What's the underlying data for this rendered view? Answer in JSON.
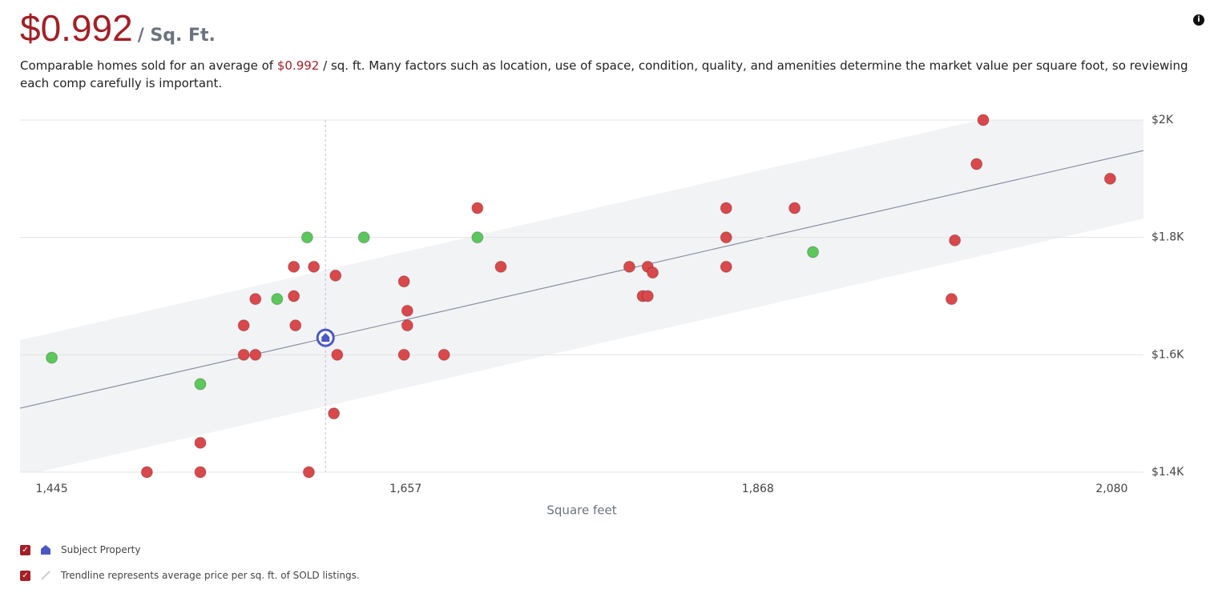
{
  "header": {
    "price": "$0.992",
    "unit": "/ Sq. Ft.",
    "info": "i"
  },
  "description": {
    "before": "Comparable homes sold for an average of",
    "price": "$0.992",
    "after": "/ sq. ft. Many factors such as location, use of space, condition, quality, and amenities determine the market value per square foot, so reviewing each comp carefully is important."
  },
  "chart_data": {
    "type": "scatter",
    "x_label": "Square feet",
    "xlim": [
      1426,
      2099
    ],
    "xticks": [
      {
        "value": 1445,
        "label": "1,445"
      },
      {
        "value": 1657,
        "label": "1,657"
      },
      {
        "value": 1868,
        "label": "1,868"
      },
      {
        "value": 2080,
        "label": "2,080"
      }
    ],
    "ylim": [
      1400,
      2000
    ],
    "yticks": [
      {
        "value": 1400,
        "label": "$1.4K"
      },
      {
        "value": 1600,
        "label": "$1.6K"
      },
      {
        "value": 1800,
        "label": "$1.8K"
      },
      {
        "value": 2000,
        "label": "$2K"
      }
    ],
    "grid": true,
    "trendline": {
      "x": [
        1426,
        2099
      ],
      "y": [
        1509,
        1948
      ],
      "color": "#8a8fa3"
    },
    "band": {
      "x": [
        1426,
        2099
      ],
      "lower": [
        1393,
        1832
      ],
      "upper": [
        1625,
        2064
      ],
      "color": "#f2f3f5"
    },
    "series": [
      {
        "color": "#d9484b",
        "x": [
          1502,
          1534,
          1534,
          1599,
          1560,
          1567,
          1560,
          1567,
          1590,
          1602,
          1590,
          1591,
          1615,
          1616,
          1614,
          1656,
          1658,
          1658,
          1656,
          1680,
          1700,
          1714,
          1791,
          1802,
          1805,
          1799,
          1802,
          1849,
          1849,
          1849,
          1890,
          1984,
          1986,
          1999,
          2003,
          2079
        ],
        "values": [
          1400,
          1400,
          1450,
          1400,
          1600,
          1600,
          1650,
          1695,
          1750,
          1750,
          1700,
          1650,
          1735,
          1600,
          1500,
          1725,
          1675,
          1650,
          1600,
          1600,
          1850,
          1750,
          1750,
          1750,
          1740,
          1700,
          1700,
          1850,
          1800,
          1750,
          1850,
          1695,
          1795,
          1925,
          2000,
          1900
        ]
      },
      {
        "color": "#5cc75c",
        "x": [
          1445,
          1534,
          1580,
          1598,
          1632,
          1700,
          1901
        ],
        "values": [
          1595,
          1550,
          1695,
          1800,
          1800,
          1800,
          1775
        ]
      }
    ],
    "subject": {
      "x": 1609,
      "y": 1629,
      "color": "#4a58c4"
    },
    "legend": [
      "Subject Property",
      "Trendline represents average price per sq. ft. of SOLD listings."
    ]
  }
}
